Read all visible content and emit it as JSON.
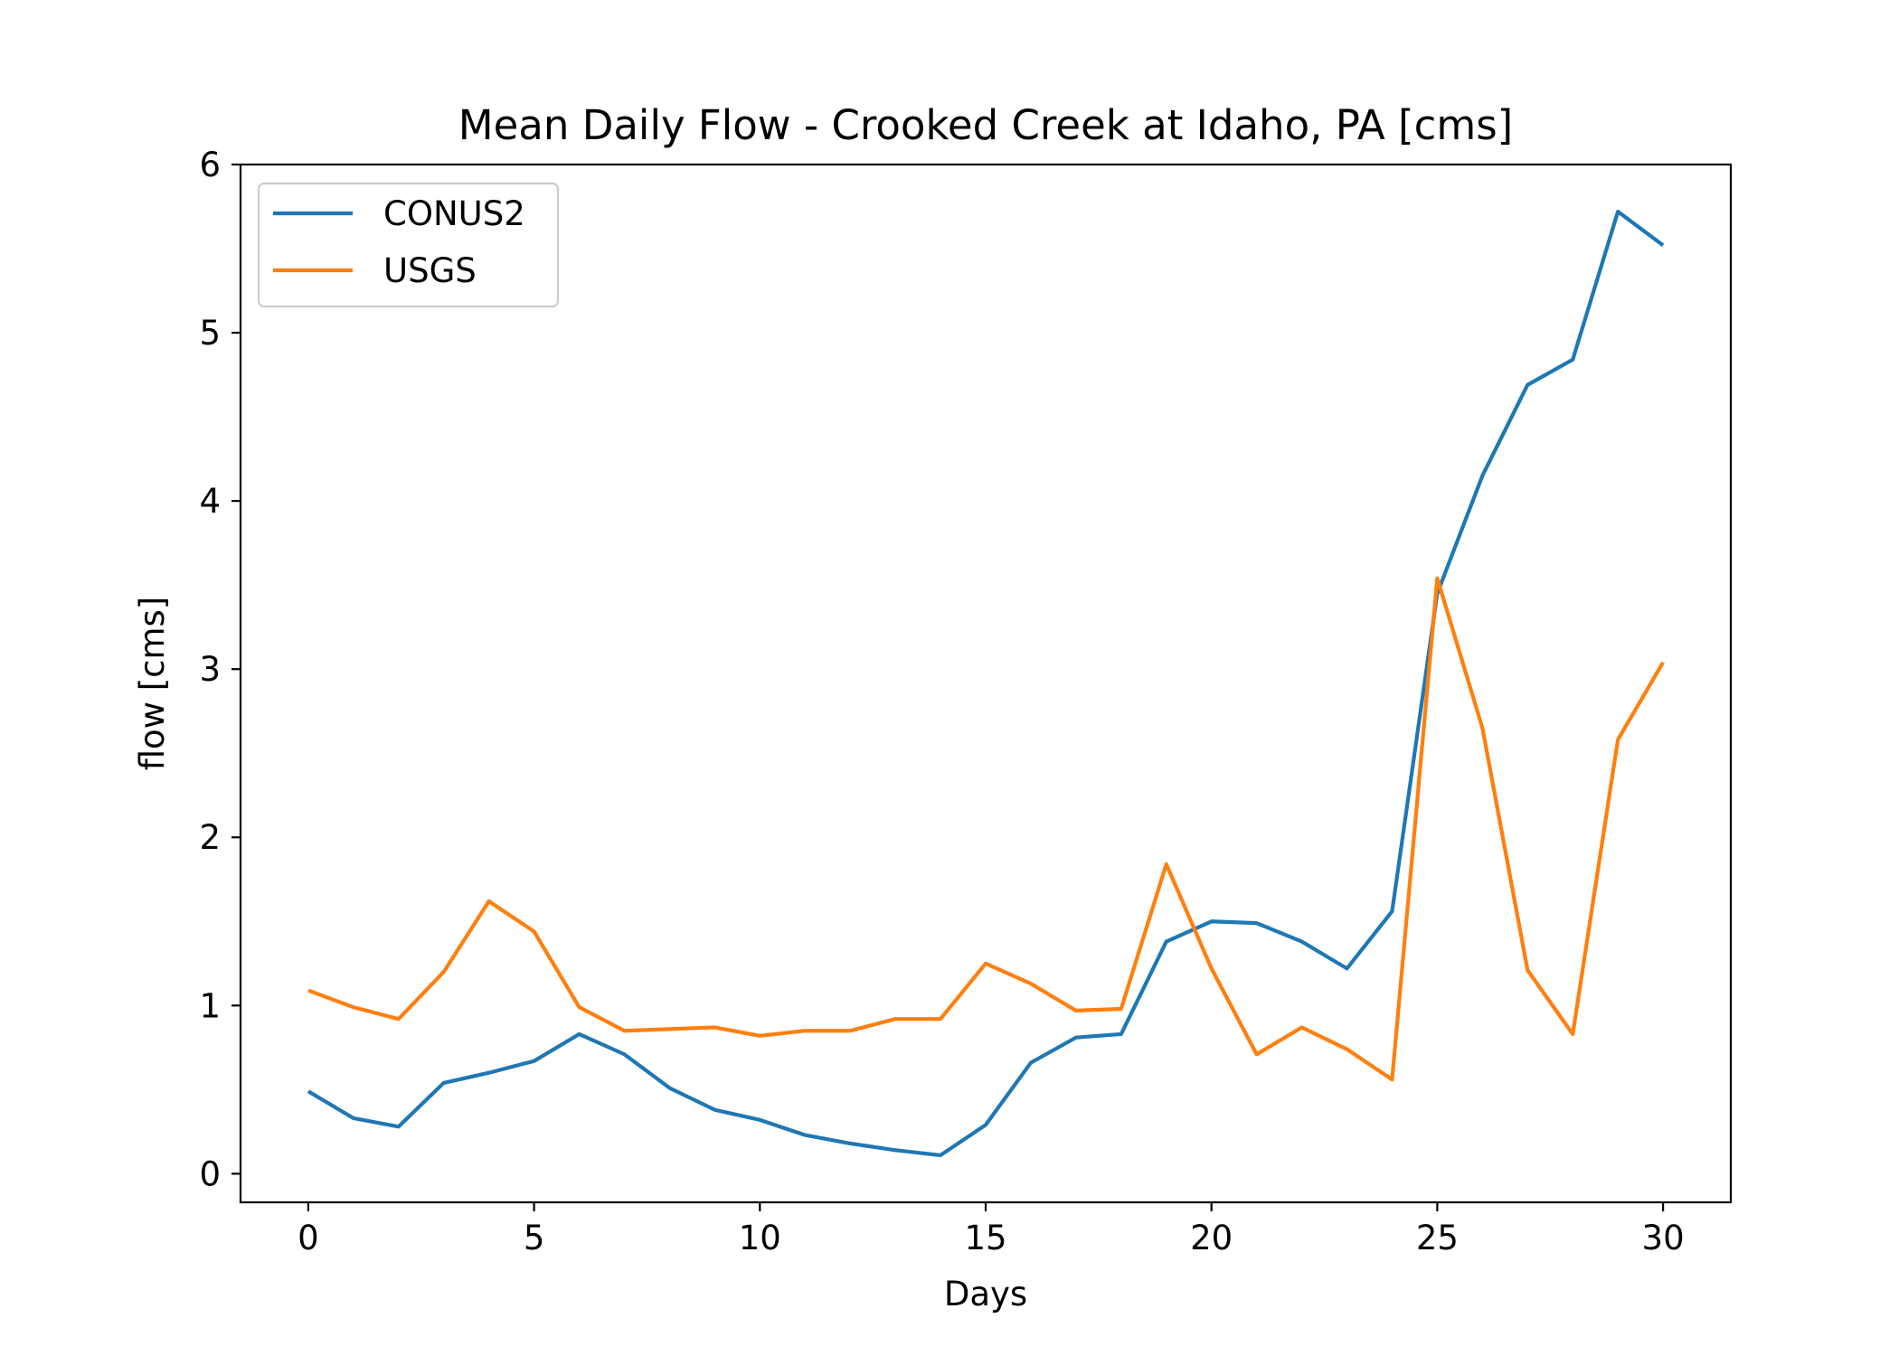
{
  "chart_data": {
    "type": "line",
    "title": "Mean Daily Flow - Crooked Creek at Idaho, PA [cms]",
    "xlabel": "Days",
    "ylabel": "flow [cms]",
    "xlim": [
      -1.5,
      31.5
    ],
    "ylim": [
      -0.17,
      6
    ],
    "xticks": [
      0,
      5,
      10,
      15,
      20,
      25,
      30
    ],
    "yticks": [
      0,
      1,
      2,
      3,
      4,
      5,
      6
    ],
    "grid": false,
    "legend_position": "top-left",
    "x": [
      0,
      1,
      2,
      3,
      4,
      5,
      6,
      7,
      8,
      9,
      10,
      11,
      12,
      13,
      14,
      15,
      16,
      17,
      18,
      19,
      20,
      21,
      22,
      23,
      24,
      25,
      26,
      27,
      28,
      29,
      30
    ],
    "series": [
      {
        "name": "CONUS2",
        "color": "#1f77b4",
        "values": [
          0.49,
          0.33,
          0.28,
          0.54,
          0.6,
          0.67,
          0.83,
          0.71,
          0.51,
          0.38,
          0.32,
          0.23,
          0.18,
          0.14,
          0.11,
          0.29,
          0.66,
          0.81,
          0.83,
          1.38,
          1.5,
          1.49,
          1.38,
          1.22,
          1.56,
          3.45,
          4.15,
          4.69,
          4.84,
          5.72,
          5.52
        ]
      },
      {
        "name": "USGS",
        "color": "#ff7f0e",
        "values": [
          1.09,
          0.99,
          0.92,
          1.2,
          1.62,
          1.44,
          0.99,
          0.85,
          0.86,
          0.87,
          0.82,
          0.85,
          0.85,
          0.92,
          0.92,
          1.25,
          1.13,
          0.97,
          0.98,
          1.84,
          1.22,
          0.71,
          0.87,
          0.74,
          0.56,
          3.54,
          2.65,
          1.21,
          0.83,
          2.58,
          3.04
        ]
      }
    ]
  }
}
